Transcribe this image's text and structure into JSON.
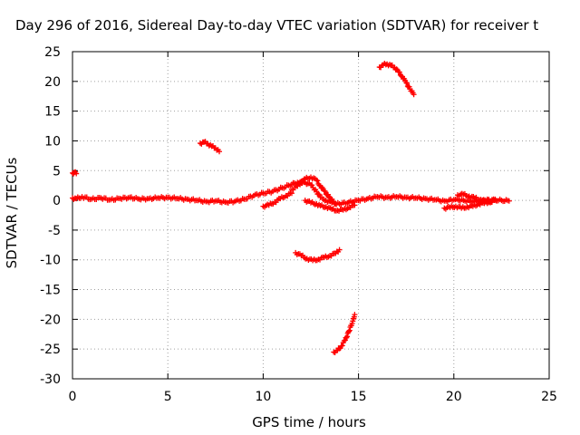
{
  "chart_data": {
    "type": "scatter",
    "title": "Day 296 of 2016, Sidereal Day-to-day VTEC variation (SDTVAR) for receiver t",
    "xlabel": "GPS time / hours",
    "ylabel": "SDTVAR / TECUs",
    "xlim": [
      0,
      25
    ],
    "ylim": [
      -30,
      25
    ],
    "xticks": [
      0,
      5,
      10,
      15,
      20,
      25
    ],
    "yticks": [
      -30,
      -25,
      -20,
      -15,
      -10,
      -5,
      0,
      5,
      10,
      15,
      20,
      25
    ],
    "grid": true,
    "legend": "none",
    "marker": "plus",
    "color": "#ff0000",
    "series": [
      {
        "x": [
          0.0,
          0.1,
          0.2
        ],
        "y": [
          4.6,
          4.7,
          4.5
        ]
      },
      {
        "x": [
          0.0,
          0.2,
          0.5,
          1.0,
          1.5,
          2.0,
          2.5,
          3.0,
          3.5,
          4.0,
          4.5,
          5.0,
          5.5,
          6.0,
          6.5,
          7.0,
          7.5,
          8.0,
          8.5,
          9.0,
          9.5,
          10.0,
          10.5,
          11.0,
          11.5,
          11.8,
          12.0,
          12.2,
          12.5,
          12.8,
          13.0,
          13.3,
          13.6,
          14.0,
          14.5,
          15.0,
          15.5,
          16.0,
          16.5,
          17.0,
          17.5,
          18.0,
          18.5,
          19.0,
          19.5,
          20.0,
          20.5,
          21.0,
          21.5,
          22.0,
          22.5,
          22.9
        ],
        "y": [
          0.4,
          0.3,
          0.6,
          0.2,
          0.4,
          0.1,
          0.3,
          0.5,
          0.2,
          0.3,
          0.4,
          0.5,
          0.3,
          0.2,
          0.0,
          -0.2,
          -0.1,
          -0.3,
          -0.2,
          0.2,
          0.8,
          1.2,
          1.5,
          2.1,
          2.7,
          3.0,
          3.2,
          3.0,
          2.6,
          1.5,
          0.5,
          0.0,
          -0.4,
          -0.6,
          -0.3,
          0.0,
          0.3,
          0.6,
          0.5,
          0.6,
          0.5,
          0.4,
          0.3,
          0.1,
          -0.1,
          0.1,
          0.0,
          -0.2,
          0.0,
          0.1,
          0.0,
          -0.1
        ]
      },
      {
        "x": [
          11.5,
          11.8,
          12.0,
          12.2,
          12.5,
          12.8,
          13.0,
          13.2,
          13.5,
          13.8
        ],
        "y": [
          1.8,
          2.4,
          2.9,
          3.6,
          3.9,
          3.4,
          2.4,
          1.6,
          0.4,
          -0.6
        ]
      },
      {
        "x": [
          10.0,
          10.3,
          10.6,
          10.9,
          11.2,
          11.5
        ],
        "y": [
          -1.0,
          -0.8,
          -0.3,
          0.3,
          0.8,
          1.2
        ]
      },
      {
        "x": [
          12.2,
          12.5,
          12.8,
          13.0,
          13.3,
          13.6,
          13.9,
          14.2,
          14.5,
          14.8
        ],
        "y": [
          0.0,
          -0.4,
          -0.6,
          -0.9,
          -1.1,
          -1.5,
          -1.7,
          -1.6,
          -1.2,
          -0.8
        ]
      },
      {
        "x": [
          19.5,
          19.8,
          20.1,
          20.4,
          20.7,
          21.0,
          21.3,
          21.6,
          21.9,
          22.2
        ],
        "y": [
          -1.3,
          -1.2,
          -1.0,
          -1.3,
          -1.1,
          -1.0,
          -0.6,
          -0.5,
          -0.2,
          0.0
        ]
      },
      {
        "x": [
          20.2,
          20.5,
          20.8,
          21.1,
          21.4,
          21.7,
          22.0
        ],
        "y": [
          0.9,
          1.0,
          0.7,
          0.4,
          0.1,
          -0.1,
          -0.3
        ]
      },
      {
        "x": [
          6.7,
          6.9,
          7.1,
          7.3,
          7.5,
          7.7
        ],
        "y": [
          9.6,
          9.8,
          9.5,
          9.1,
          8.8,
          8.2
        ]
      },
      {
        "x": [
          16.1,
          16.3,
          16.5,
          16.7,
          16.9,
          17.1,
          17.3,
          17.5,
          17.7,
          17.9
        ],
        "y": [
          22.4,
          22.8,
          22.9,
          22.7,
          22.3,
          21.6,
          20.8,
          19.8,
          18.7,
          17.8
        ]
      },
      {
        "x": [
          11.7,
          12.0,
          12.3,
          12.6,
          12.9,
          13.2,
          13.5,
          13.8,
          14.0
        ],
        "y": [
          -8.8,
          -9.3,
          -9.8,
          -10.1,
          -9.9,
          -9.6,
          -9.3,
          -8.9,
          -8.3
        ]
      },
      {
        "x": [
          13.7,
          13.9,
          14.1,
          14.3,
          14.5,
          14.7,
          14.8
        ],
        "y": [
          -25.5,
          -25.2,
          -24.5,
          -23.5,
          -22.0,
          -20.3,
          -19.2
        ]
      }
    ]
  }
}
